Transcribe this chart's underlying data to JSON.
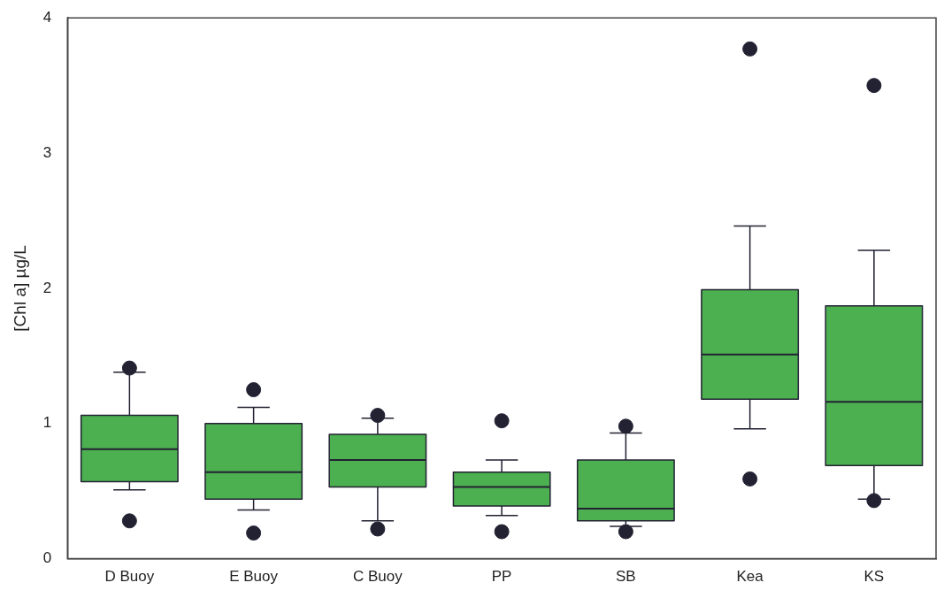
{
  "chart_data": {
    "type": "box",
    "ylabel": "[Chl a] µg/L",
    "categories": [
      "D Buoy",
      "E Buoy",
      "C Buoy",
      "PP",
      "SB",
      "Kea",
      "KS"
    ],
    "color": "#4caf50",
    "ylim": [
      0,
      4
    ],
    "yticks": [
      0,
      1,
      2,
      3,
      4
    ],
    "grid": false,
    "legend": false,
    "marker": "circle",
    "boxes": [
      {
        "low": 0.51,
        "q1": 0.57,
        "median": 0.81,
        "q3": 1.06,
        "high": 1.38,
        "outliers": [
          1.41,
          0.28
        ]
      },
      {
        "low": 0.36,
        "q1": 0.44,
        "median": 0.64,
        "q3": 1.0,
        "high": 1.12,
        "outliers": [
          1.25,
          0.19
        ]
      },
      {
        "low": 0.28,
        "q1": 0.53,
        "median": 0.73,
        "q3": 0.92,
        "high": 1.04,
        "outliers": [
          1.06,
          0.22
        ]
      },
      {
        "low": 0.32,
        "q1": 0.39,
        "median": 0.53,
        "q3": 0.64,
        "high": 0.73,
        "outliers": [
          1.02,
          0.2
        ]
      },
      {
        "low": 0.24,
        "q1": 0.28,
        "median": 0.37,
        "q3": 0.73,
        "high": 0.93,
        "outliers": [
          0.98,
          0.2
        ]
      },
      {
        "low": 0.96,
        "q1": 1.18,
        "median": 1.51,
        "q3": 1.99,
        "high": 2.46,
        "outliers": [
          3.77,
          0.59
        ]
      },
      {
        "low": 0.44,
        "q1": 0.69,
        "median": 1.16,
        "q3": 1.87,
        "high": 2.28,
        "outliers": [
          3.5,
          0.43
        ]
      }
    ]
  }
}
